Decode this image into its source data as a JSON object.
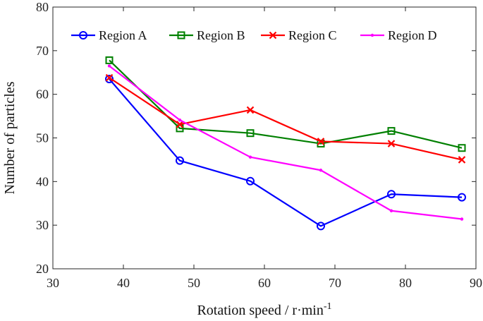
{
  "chart_data": {
    "type": "line",
    "title": "",
    "xlabel": "Rotation speed / r·min",
    "xlabel_superscript": "-1",
    "ylabel": "Number of particles",
    "xlim": [
      30,
      90
    ],
    "ylim": [
      20,
      80
    ],
    "xticks": [
      30,
      40,
      50,
      60,
      70,
      80,
      90
    ],
    "yticks": [
      20,
      30,
      40,
      50,
      60,
      70,
      80
    ],
    "grid": false,
    "legend_position": "top, horizontal",
    "x": [
      38,
      48,
      58,
      68,
      78,
      88
    ],
    "series": [
      {
        "name": "Region A",
        "color": "#0000ff",
        "marker": "circle",
        "values": [
          63.5,
          44.8,
          40.1,
          29.8,
          37.1,
          36.4
        ]
      },
      {
        "name": "Region B",
        "color": "#008000",
        "marker": "square",
        "values": [
          67.8,
          52.2,
          51.1,
          48.7,
          51.6,
          47.7
        ]
      },
      {
        "name": "Region C",
        "color": "#ff0000",
        "marker": "x",
        "values": [
          63.8,
          53.1,
          56.4,
          49.2,
          48.7,
          45.0
        ]
      },
      {
        "name": "Region D",
        "color": "#ff00ff",
        "marker": "dot",
        "values": [
          66.5,
          54.1,
          45.6,
          42.6,
          33.3,
          31.4
        ]
      }
    ]
  }
}
